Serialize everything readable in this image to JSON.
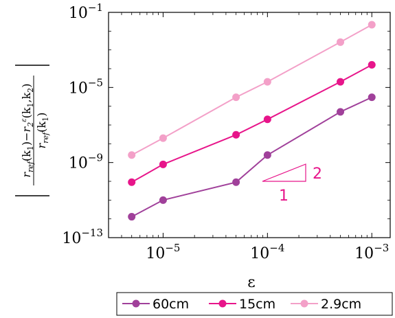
{
  "chart_data": {
    "type": "line",
    "xscale": "log",
    "yscale": "log",
    "xlabel": "ε",
    "ylabel": "|(r_ref(k1) − r_2^ε(k1,k2)) / r_ref(k1)|",
    "xlim": [
      3e-06,
      0.0015
    ],
    "ylim": [
      1e-13,
      0.1
    ],
    "xticks": [
      1e-05,
      0.0001,
      0.001
    ],
    "xtick_labels": [
      {
        "base": "10",
        "exp": "−5"
      },
      {
        "base": "10",
        "exp": "−4"
      },
      {
        "base": "10",
        "exp": "−3"
      }
    ],
    "yticks": [
      1e-13,
      1e-09,
      1e-05,
      0.1
    ],
    "ytick_labels": [
      {
        "base": "10",
        "exp": "−13"
      },
      {
        "base": "10",
        "exp": "−9"
      },
      {
        "base": "10",
        "exp": "−5"
      },
      {
        "base": "10",
        "exp": "−1"
      }
    ],
    "grid": false,
    "legend_position": "bottom",
    "x": [
      5e-06,
      1e-05,
      5e-05,
      0.0001,
      0.0005,
      0.001
    ],
    "series": [
      {
        "name": "60cm",
        "color": "#a0409a",
        "values": [
          1.3e-12,
          1e-11,
          9e-11,
          2.5e-09,
          5e-07,
          3e-06
        ]
      },
      {
        "name": "15cm",
        "color": "#e7158a",
        "values": [
          9e-11,
          8e-10,
          3e-08,
          2e-07,
          2e-05,
          0.00016
        ]
      },
      {
        "name": "2.9cm",
        "color": "#f3a0c8",
        "values": [
          2.5e-09,
          2e-08,
          3e-06,
          2e-05,
          0.0026,
          0.022
        ]
      }
    ],
    "slope_annotation": {
      "color": "#e7158a",
      "run_label": "1",
      "rise_label": "2"
    }
  }
}
